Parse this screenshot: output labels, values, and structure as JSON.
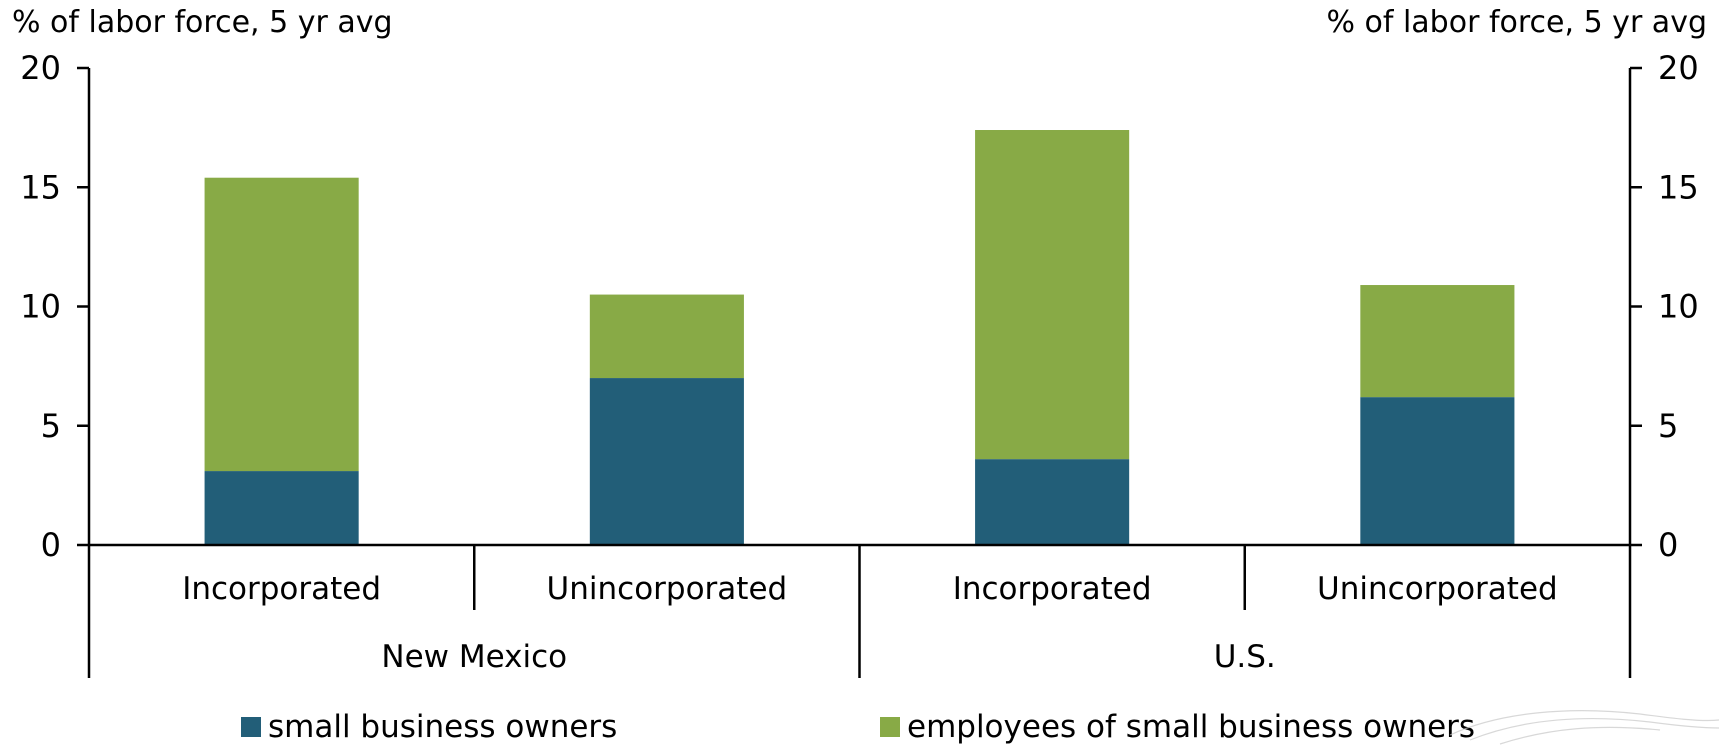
{
  "chart_data": {
    "type": "bar",
    "stacked": true,
    "ylabel_left": "% of labor force, 5 yr avg",
    "ylabel_right": "% of labor force, 5 yr avg",
    "ylim": [
      0,
      20
    ],
    "yticks": [
      "0",
      "5",
      "10",
      "15",
      "20"
    ],
    "groups": [
      {
        "label": "New Mexico",
        "categories": [
          "Incorporated",
          "Unincorporated"
        ]
      },
      {
        "label": "U.S.",
        "categories": [
          "Incorporated",
          "Unincorporated"
        ]
      }
    ],
    "series": [
      {
        "name": "small business owners",
        "color": "#225e78",
        "values": [
          3.1,
          7.0,
          3.6,
          6.2
        ]
      },
      {
        "name": "employees of small business owners",
        "color": "#88aa46",
        "values": [
          12.3,
          3.5,
          13.8,
          4.7
        ]
      }
    ],
    "legend_position": "bottom"
  }
}
